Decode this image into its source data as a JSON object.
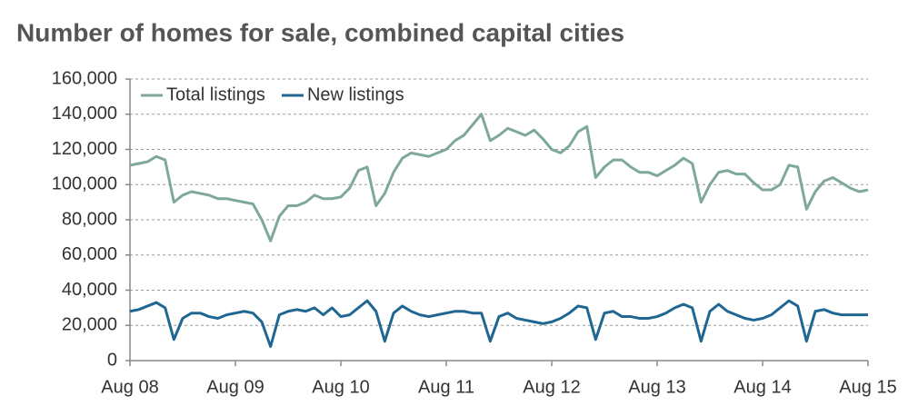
{
  "chart_data": {
    "type": "line",
    "title": "Number of homes for sale, combined capital cities",
    "categories": [
      "Aug 08",
      null,
      null,
      null,
      null,
      null,
      null,
      null,
      null,
      null,
      null,
      null,
      "Aug 09",
      null,
      null,
      null,
      null,
      null,
      null,
      null,
      null,
      null,
      null,
      null,
      "Aug 10",
      null,
      null,
      null,
      null,
      null,
      null,
      null,
      null,
      null,
      null,
      null,
      "Aug 11",
      null,
      null,
      null,
      null,
      null,
      null,
      null,
      null,
      null,
      null,
      null,
      "Aug 12",
      null,
      null,
      null,
      null,
      null,
      null,
      null,
      null,
      null,
      null,
      null,
      "Aug 13",
      null,
      null,
      null,
      null,
      null,
      null,
      null,
      null,
      null,
      null,
      null,
      "Aug 14",
      null,
      null,
      null,
      null,
      null,
      null,
      null,
      null,
      null,
      null,
      null,
      "Aug 15"
    ],
    "series": [
      {
        "name": "Total listings",
        "color": "#7ea898",
        "values": [
          111000,
          112000,
          113000,
          116000,
          114000,
          90000,
          94000,
          96000,
          95000,
          94000,
          92000,
          92000,
          91000,
          90000,
          89000,
          80000,
          68000,
          82000,
          88000,
          88000,
          90000,
          94000,
          92000,
          92000,
          93000,
          98000,
          108000,
          110000,
          88000,
          95000,
          107000,
          115000,
          118000,
          117000,
          116000,
          118000,
          120000,
          125000,
          128000,
          134000,
          140000,
          125000,
          128000,
          132000,
          130000,
          128000,
          131000,
          126000,
          120000,
          118000,
          122000,
          130000,
          133000,
          104000,
          110000,
          114000,
          114000,
          110000,
          107000,
          107000,
          105000,
          108000,
          111000,
          115000,
          112000,
          90000,
          100000,
          107000,
          108000,
          106000,
          106000,
          101000,
          97000,
          97000,
          100000,
          111000,
          110000,
          86000,
          96000,
          102000,
          104000,
          101000,
          98000,
          96000,
          97000
        ]
      },
      {
        "name": "New listings",
        "color": "#1f6792",
        "values": [
          28000,
          29000,
          31000,
          33000,
          30000,
          12000,
          24000,
          27000,
          27000,
          25000,
          24000,
          26000,
          27000,
          28000,
          27000,
          22000,
          8000,
          26000,
          28000,
          29000,
          28000,
          30000,
          26000,
          30000,
          25000,
          26000,
          30000,
          34000,
          28000,
          11000,
          27000,
          31000,
          28000,
          26000,
          25000,
          26000,
          27000,
          28000,
          28000,
          27000,
          27000,
          11000,
          25000,
          27000,
          24000,
          23000,
          22000,
          21000,
          22000,
          24000,
          27000,
          31000,
          30000,
          12000,
          27000,
          28000,
          25000,
          25000,
          24000,
          24000,
          25000,
          27000,
          30000,
          32000,
          30000,
          11000,
          28000,
          32000,
          28000,
          26000,
          24000,
          23000,
          24000,
          26000,
          30000,
          34000,
          31000,
          11000,
          28000,
          29000,
          27000,
          26000,
          26000,
          26000,
          26000
        ]
      }
    ],
    "ylim": [
      0,
      160000
    ],
    "yticks": [
      0,
      {
        "value": 20000,
        "label": "20,000"
      },
      {
        "value": 40000,
        "label": "40,000"
      },
      {
        "value": 60000,
        "label": "60,000"
      },
      {
        "value": 80000,
        "label": "80,000"
      },
      {
        "value": 100000,
        "label": "100,000"
      },
      {
        "value": 120000,
        "label": "120,000"
      },
      {
        "value": 140000,
        "label": "140,000"
      },
      {
        "value": 160000,
        "label": "160,000"
      }
    ],
    "grid": true,
    "legend": "top-left"
  }
}
